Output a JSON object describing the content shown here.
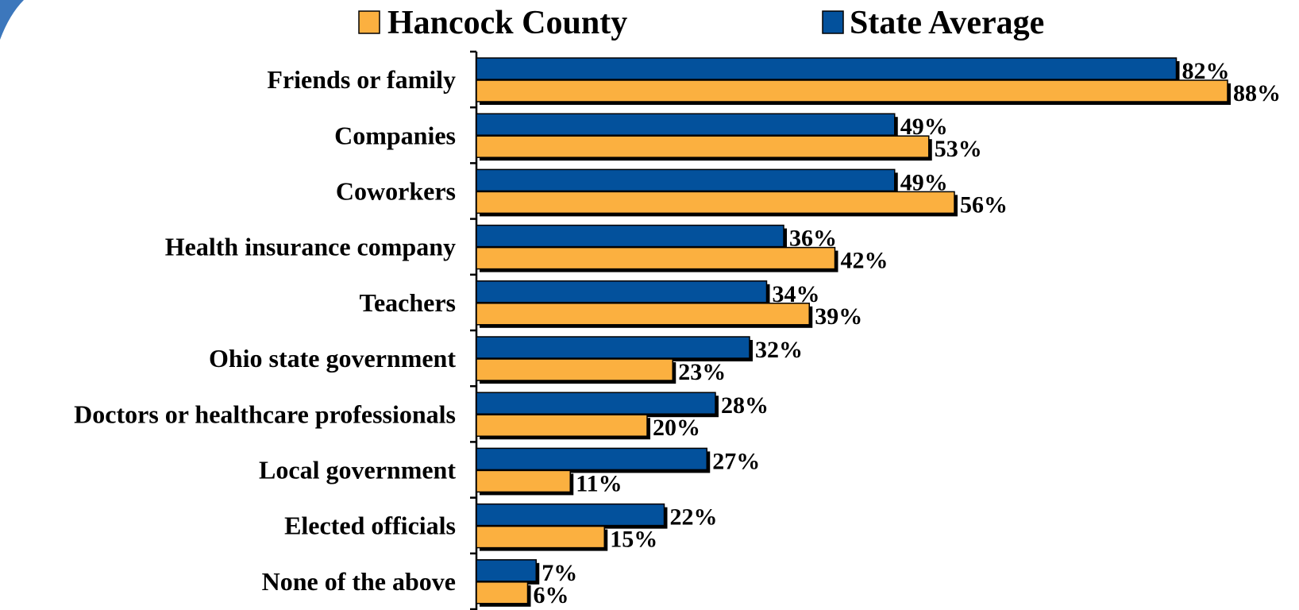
{
  "chart_data": {
    "type": "bar",
    "orientation": "horizontal",
    "title": "",
    "xlabel": "",
    "ylabel": "",
    "xlim": [
      0,
      100
    ],
    "grid": false,
    "legend_position": "top",
    "categories": [
      "Friends or family",
      "Companies",
      "Coworkers",
      "Health insurance company",
      "Teachers",
      "Ohio state government",
      "Doctors or healthcare professionals",
      "Local government",
      "Elected officials",
      "None of the above"
    ],
    "series": [
      {
        "name": "State Average",
        "color": "#03519c",
        "values": [
          82,
          49,
          49,
          36,
          34,
          32,
          28,
          27,
          22,
          7
        ],
        "labels": [
          "82%",
          "49%",
          "49%",
          "36%",
          "34%",
          "32%",
          "28%",
          "27%",
          "22%",
          "7%"
        ]
      },
      {
        "name": "Hancock County",
        "color": "#fbb040",
        "values": [
          88,
          53,
          56,
          42,
          39,
          23,
          20,
          11,
          15,
          6
        ],
        "labels": [
          "88%",
          "53%",
          "56%",
          "42%",
          "39%",
          "23%",
          "20%",
          "11%",
          "15%",
          "6%"
        ]
      }
    ],
    "legend": [
      {
        "name": "Hancock County",
        "color": "#fbb040"
      },
      {
        "name": "State Average",
        "color": "#03519c"
      }
    ]
  },
  "decor": {
    "corner_accent_color": "#1a5fb0"
  }
}
